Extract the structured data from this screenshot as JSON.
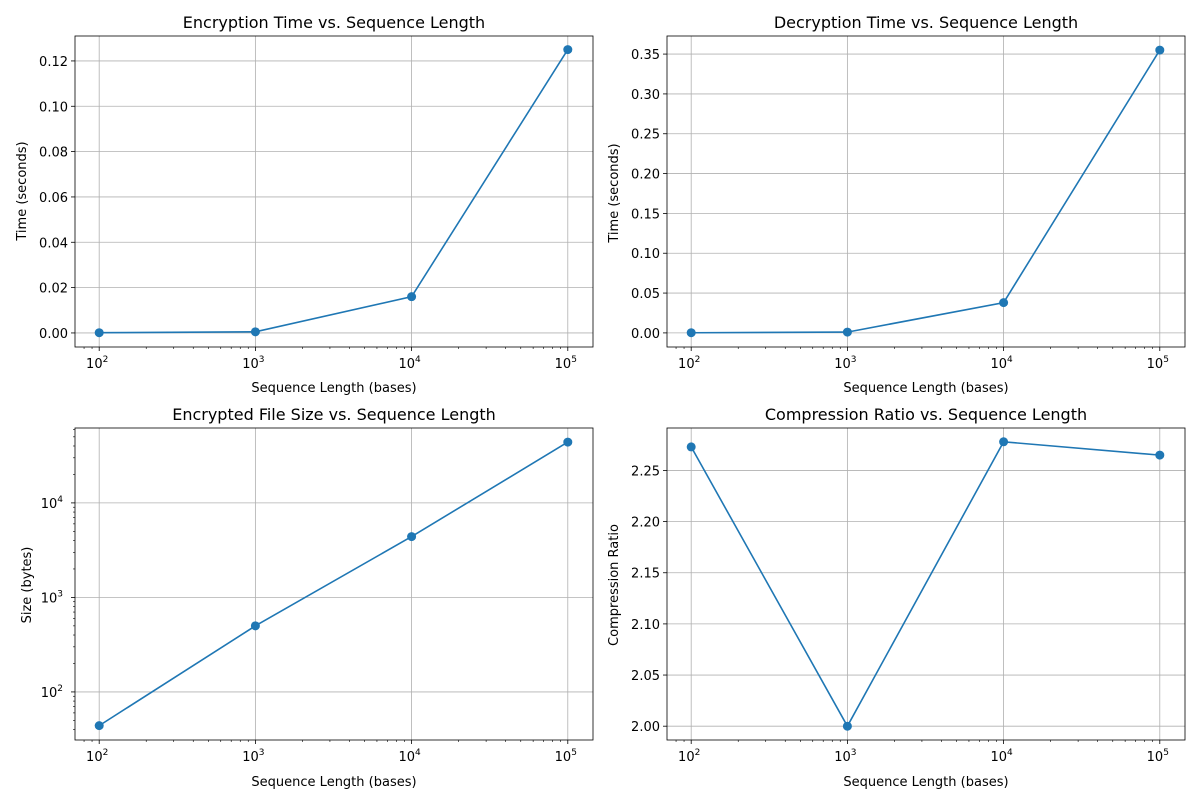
{
  "style": {
    "line_color": "#1f77b4",
    "grid_color": "#b0b0b0",
    "marker": "circle"
  },
  "chart_data": [
    {
      "type": "line",
      "title": "Encryption Time vs. Sequence Length",
      "xlabel": "Sequence Length (bases)",
      "ylabel": "Time (seconds)",
      "xscale": "log",
      "yscale": "linear",
      "xlim": [
        70,
        145000
      ],
      "ylim": [
        -0.0062,
        0.131
      ],
      "x": [
        100,
        1000,
        10000,
        100000
      ],
      "series": [
        {
          "values": [
            0.0001,
            0.0005,
            0.016,
            0.125
          ]
        }
      ],
      "xticks": [
        {
          "value": 100,
          "base": "10",
          "exp": "2"
        },
        {
          "value": 1000,
          "base": "10",
          "exp": "3"
        },
        {
          "value": 10000,
          "base": "10",
          "exp": "4"
        },
        {
          "value": 100000,
          "base": "10",
          "exp": "5"
        }
      ],
      "yticks": [
        {
          "value": 0.0,
          "label": "0.00"
        },
        {
          "value": 0.02,
          "label": "0.02"
        },
        {
          "value": 0.04,
          "label": "0.04"
        },
        {
          "value": 0.06,
          "label": "0.06"
        },
        {
          "value": 0.08,
          "label": "0.08"
        },
        {
          "value": 0.1,
          "label": "0.10"
        },
        {
          "value": 0.12,
          "label": "0.12"
        }
      ],
      "grid": true
    },
    {
      "type": "line",
      "title": "Decryption Time vs. Sequence Length",
      "xlabel": "Sequence Length (bases)",
      "ylabel": "Time (seconds)",
      "xscale": "log",
      "yscale": "linear",
      "xlim": [
        70,
        145000
      ],
      "ylim": [
        -0.0177,
        0.3727
      ],
      "x": [
        100,
        1000,
        10000,
        100000
      ],
      "series": [
        {
          "values": [
            0.0002,
            0.001,
            0.038,
            0.355
          ]
        }
      ],
      "xticks": [
        {
          "value": 100,
          "base": "10",
          "exp": "2"
        },
        {
          "value": 1000,
          "base": "10",
          "exp": "3"
        },
        {
          "value": 10000,
          "base": "10",
          "exp": "4"
        },
        {
          "value": 100000,
          "base": "10",
          "exp": "5"
        }
      ],
      "yticks": [
        {
          "value": 0.0,
          "label": "0.00"
        },
        {
          "value": 0.05,
          "label": "0.05"
        },
        {
          "value": 0.1,
          "label": "0.10"
        },
        {
          "value": 0.15,
          "label": "0.15"
        },
        {
          "value": 0.2,
          "label": "0.20"
        },
        {
          "value": 0.25,
          "label": "0.25"
        },
        {
          "value": 0.3,
          "label": "0.30"
        },
        {
          "value": 0.35,
          "label": "0.35"
        }
      ],
      "grid": true
    },
    {
      "type": "line",
      "title": "Encrypted File Size vs. Sequence Length",
      "xlabel": "Sequence Length (bases)",
      "ylabel": "Size (bytes)",
      "xscale": "log",
      "yscale": "log",
      "xlim": [
        70,
        145000
      ],
      "ylim": [
        31,
        62000
      ],
      "x": [
        100,
        1000,
        10000,
        100000
      ],
      "series": [
        {
          "values": [
            44,
            500,
            4400,
            44000
          ]
        }
      ],
      "xticks": [
        {
          "value": 100,
          "base": "10",
          "exp": "2"
        },
        {
          "value": 1000,
          "base": "10",
          "exp": "3"
        },
        {
          "value": 10000,
          "base": "10",
          "exp": "4"
        },
        {
          "value": 100000,
          "base": "10",
          "exp": "5"
        }
      ],
      "yticks": [
        {
          "value": 100,
          "base": "10",
          "exp": "2"
        },
        {
          "value": 1000,
          "base": "10",
          "exp": "3"
        },
        {
          "value": 10000,
          "base": "10",
          "exp": "4"
        }
      ],
      "grid": true
    },
    {
      "type": "line",
      "title": "Compression Ratio vs. Sequence Length",
      "xlabel": "Sequence Length (bases)",
      "ylabel": "Compression Ratio",
      "xscale": "log",
      "yscale": "linear",
      "xlim": [
        70,
        145000
      ],
      "ylim": [
        1.9865,
        2.2915
      ],
      "x": [
        100,
        1000,
        10000,
        100000
      ],
      "series": [
        {
          "values": [
            2.273,
            2.0,
            2.278,
            2.265
          ]
        }
      ],
      "xticks": [
        {
          "value": 100,
          "base": "10",
          "exp": "2"
        },
        {
          "value": 1000,
          "base": "10",
          "exp": "3"
        },
        {
          "value": 10000,
          "base": "10",
          "exp": "4"
        },
        {
          "value": 100000,
          "base": "10",
          "exp": "5"
        }
      ],
      "yticks": [
        {
          "value": 2.0,
          "label": "2.00"
        },
        {
          "value": 2.05,
          "label": "2.05"
        },
        {
          "value": 2.1,
          "label": "2.10"
        },
        {
          "value": 2.15,
          "label": "2.15"
        },
        {
          "value": 2.2,
          "label": "2.20"
        },
        {
          "value": 2.25,
          "label": "2.25"
        }
      ],
      "grid": true
    }
  ]
}
